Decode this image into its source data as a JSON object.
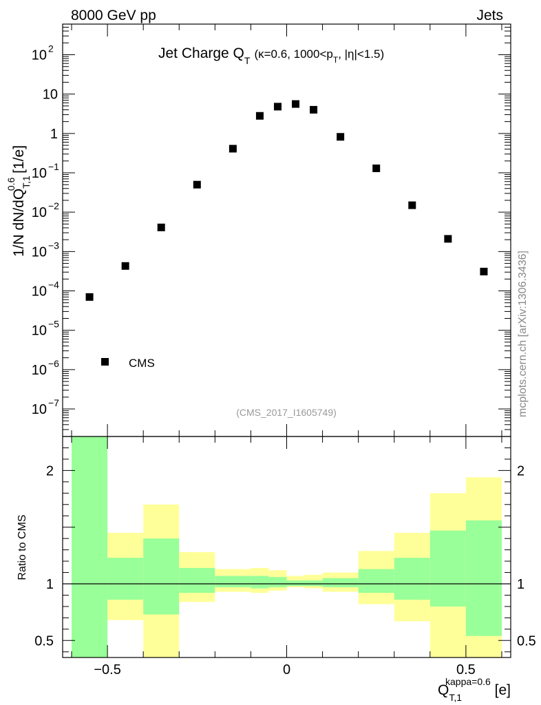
{
  "header": {
    "left": "8000 GeV pp",
    "right": "Jets",
    "watermark": "mcplots.cern.ch [arXiv:1306.3436]"
  },
  "chart_data": [
    {
      "type": "scatter",
      "title": "Jet Charge Q_T (κ=0.6, 1000<p_T, |η|<1.5)",
      "title_parts": {
        "main": "Jet Charge Q",
        "main_sub": "T",
        "paren_start": "(κ=0.6, 1000<p",
        "paren_sub": "T",
        "paren_end": ", |η|<1.5)"
      },
      "ylabel": "1/N dN/dQ_{T,1}^{0.6} [1/e]",
      "ylabel_parts": {
        "main": "1/N dN/dQ",
        "sub": "T,1",
        "sup": "0.6",
        "unit": " [1/e]"
      },
      "yscale": "log",
      "ylim": [
        2e-08,
        600
      ],
      "xlim": [
        -0.625,
        0.625
      ],
      "yticks": [
        {
          "value": 1e-07,
          "label": "10",
          "exp": "−7"
        },
        {
          "value": 1e-06,
          "label": "10",
          "exp": "−6"
        },
        {
          "value": 1e-05,
          "label": "10",
          "exp": "−5"
        },
        {
          "value": 0.0001,
          "label": "10",
          "exp": "−4"
        },
        {
          "value": 0.001,
          "label": "10",
          "exp": "−3"
        },
        {
          "value": 0.01,
          "label": "10",
          "exp": "−2"
        },
        {
          "value": 0.1,
          "label": "10",
          "exp": "−1"
        },
        {
          "value": 1,
          "label": "1",
          "exp": ""
        },
        {
          "value": 10,
          "label": "10",
          "exp": ""
        },
        {
          "value": 100,
          "label": "10",
          "exp": "2"
        }
      ],
      "legend": {
        "label": "CMS",
        "position": "bottom-left"
      },
      "reference": "(CMS_2017_I1605749)",
      "series": [
        {
          "name": "CMS",
          "points": [
            {
              "x": -0.55,
              "y": 7e-05
            },
            {
              "x": -0.45,
              "y": 0.00043
            },
            {
              "x": -0.35,
              "y": 0.0041
            },
            {
              "x": -0.25,
              "y": 0.05
            },
            {
              "x": -0.15,
              "y": 0.41
            },
            {
              "x": -0.075,
              "y": 2.8
            },
            {
              "x": -0.025,
              "y": 4.8
            },
            {
              "x": 0.025,
              "y": 5.6
            },
            {
              "x": 0.075,
              "y": 4.0
            },
            {
              "x": 0.15,
              "y": 0.82
            },
            {
              "x": 0.25,
              "y": 0.13
            },
            {
              "x": 0.35,
              "y": 0.015
            },
            {
              "x": 0.45,
              "y": 0.0021
            },
            {
              "x": 0.55,
              "y": 0.00031
            }
          ]
        }
      ]
    },
    {
      "type": "bar",
      "ylabel": "Ratio to CMS",
      "ylim": [
        0.35,
        2.3
      ],
      "xlim": [
        -0.625,
        0.625
      ],
      "yticks": [
        {
          "value": 0.5,
          "label": "0.5"
        },
        {
          "value": 1,
          "label": "1"
        },
        {
          "value": 2,
          "label": "2"
        }
      ],
      "xticks": [
        {
          "value": -0.5,
          "label": "−0.5"
        },
        {
          "value": 0,
          "label": "0"
        },
        {
          "value": 0.5,
          "label": "0.5"
        }
      ],
      "xlabel": "Q_{T,1}^{kappa=0.6} [e]",
      "xlabel_parts": {
        "main": "Q",
        "sub": "T,1",
        "sup": "kappa=0.6",
        "unit": " [e]"
      },
      "reference_line": 1,
      "colors": {
        "inner": "#99ff99",
        "outer": "#ffff99"
      },
      "bins": [
        {
          "lo": -0.6,
          "hi": -0.5,
          "inner": [
            0.35,
            2.3
          ],
          "outer": [
            0.35,
            2.3
          ]
        },
        {
          "lo": -0.5,
          "hi": -0.4,
          "inner": [
            0.86,
            1.23
          ],
          "outer": [
            0.68,
            1.45
          ]
        },
        {
          "lo": -0.4,
          "hi": -0.3,
          "inner": [
            0.73,
            1.4
          ],
          "outer": [
            0.35,
            1.7
          ]
        },
        {
          "lo": -0.3,
          "hi": -0.2,
          "inner": [
            0.92,
            1.14
          ],
          "outer": [
            0.84,
            1.28
          ]
        },
        {
          "lo": -0.2,
          "hi": -0.1,
          "inner": [
            0.97,
            1.07
          ],
          "outer": [
            0.93,
            1.13
          ]
        },
        {
          "lo": -0.1,
          "hi": -0.05,
          "inner": [
            0.96,
            1.07
          ],
          "outer": [
            0.92,
            1.14
          ]
        },
        {
          "lo": -0.05,
          "hi": 0,
          "inner": [
            0.97,
            1.06
          ],
          "outer": [
            0.94,
            1.12
          ]
        },
        {
          "lo": 0,
          "hi": 0.05,
          "inner": [
            0.98,
            1.03
          ],
          "outer": [
            0.97,
            1.07
          ]
        },
        {
          "lo": 0.05,
          "hi": 0.1,
          "inner": [
            0.98,
            1.03
          ],
          "outer": [
            0.96,
            1.08
          ]
        },
        {
          "lo": 0.1,
          "hi": 0.2,
          "inner": [
            0.97,
            1.05
          ],
          "outer": [
            0.93,
            1.1
          ]
        },
        {
          "lo": 0.2,
          "hi": 0.3,
          "inner": [
            0.92,
            1.13
          ],
          "outer": [
            0.82,
            1.29
          ]
        },
        {
          "lo": 0.3,
          "hi": 0.4,
          "inner": [
            0.86,
            1.23
          ],
          "outer": [
            0.67,
            1.45
          ]
        },
        {
          "lo": 0.4,
          "hi": 0.5,
          "inner": [
            0.8,
            1.47
          ],
          "outer": [
            0.35,
            1.8
          ]
        },
        {
          "lo": 0.5,
          "hi": 0.6,
          "inner": [
            0.54,
            1.56
          ],
          "outer": [
            0.35,
            1.94
          ]
        }
      ]
    }
  ]
}
